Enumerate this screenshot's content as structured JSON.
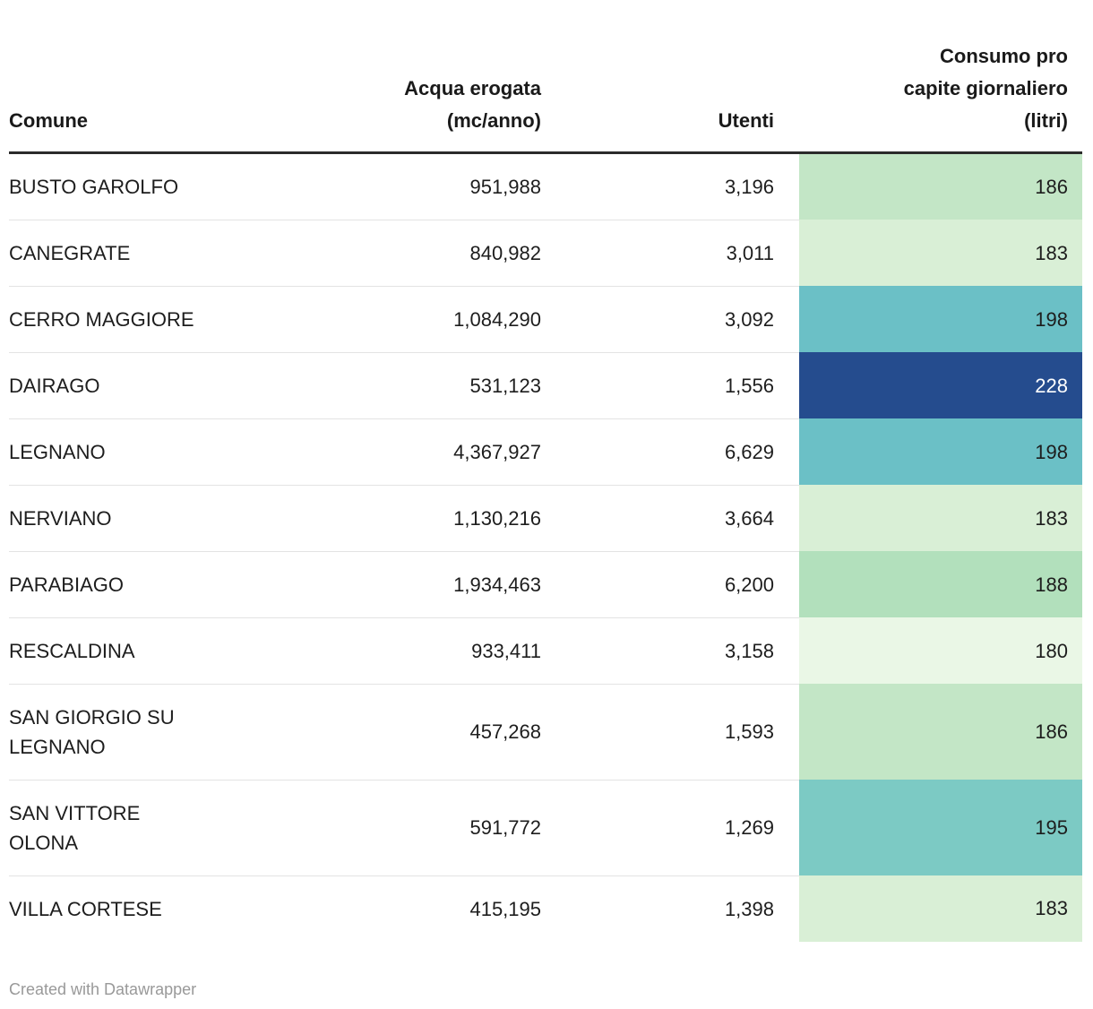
{
  "header": {
    "col_comune": "Comune",
    "col_acqua": "Acqua erogata\n(mc/anno)",
    "col_utenti": "Utenti",
    "col_consumo": "Consumo pro\ncapite giornaliero\n(litri)"
  },
  "rows": [
    {
      "comune": "BUSTO GAROLFO",
      "acqua": "951,988",
      "utenti": "3,196",
      "consumo": "186",
      "consumo_style": "background-color:#c3e6c6;color:#1d1d1d"
    },
    {
      "comune": "CANEGRATE",
      "acqua": "840,982",
      "utenti": "3,011",
      "consumo": "183",
      "consumo_style": "background-color:#d9efd6;color:#1d1d1d"
    },
    {
      "comune": "CERRO MAGGIORE",
      "acqua": "1,084,290",
      "utenti": "3,092",
      "consumo": "198",
      "consumo_style": "background-color:#6bc0c6;color:#1d1d1d"
    },
    {
      "comune": "DAIRAGO",
      "acqua": "531,123",
      "utenti": "1,556",
      "consumo": "228",
      "consumo_style": "background-color:#254c8e;color:#ffffff"
    },
    {
      "comune": "LEGNANO",
      "acqua": "4,367,927",
      "utenti": "6,629",
      "consumo": "198",
      "consumo_style": "background-color:#6bc0c6;color:#1d1d1d"
    },
    {
      "comune": "NERVIANO",
      "acqua": "1,130,216",
      "utenti": "3,664",
      "consumo": "183",
      "consumo_style": "background-color:#d9efd6;color:#1d1d1d"
    },
    {
      "comune": "PARABIAGO",
      "acqua": "1,934,463",
      "utenti": "6,200",
      "consumo": "188",
      "consumo_style": "background-color:#b2e0bc;color:#1d1d1d"
    },
    {
      "comune": "RESCALDINA",
      "acqua": "933,411",
      "utenti": "3,158",
      "consumo": "180",
      "consumo_style": "background-color:#eaf7e6;color:#1d1d1d"
    },
    {
      "comune": "SAN GIORGIO SU\nLEGNANO",
      "acqua": "457,268",
      "utenti": "1,593",
      "consumo": "186",
      "consumo_style": "background-color:#c3e6c6;color:#1d1d1d"
    },
    {
      "comune": "SAN VITTORE\nOLONA",
      "acqua": "591,772",
      "utenti": "1,269",
      "consumo": "195",
      "consumo_style": "background-color:#7ccac4;color:#1d1d1d"
    },
    {
      "comune": "VILLA CORTESE",
      "acqua": "415,195",
      "utenti": "1,398",
      "consumo": "183",
      "consumo_style": "background-color:#d9efd6;color:#1d1d1d"
    }
  ],
  "footer": {
    "credit": "Created with Datawrapper"
  },
  "colors": {
    "heat_180": "#eaf7e6",
    "heat_183": "#d9efd6",
    "heat_186": "#c3e6c6",
    "heat_188": "#b2e0bc",
    "heat_195": "#7ccac4",
    "heat_198": "#6bc0c6",
    "heat_228": "#254c8e",
    "heat_228_text": "#ffffff",
    "text": "#1d1d1d",
    "header_border": "#2b2b2b",
    "row_border": "#e3e3e3",
    "credit_text": "#999999"
  },
  "chart_data": {
    "type": "table",
    "columns": [
      "Comune",
      "Acqua erogata (mc/anno)",
      "Utenti",
      "Consumo pro capite giornaliero (litri)"
    ],
    "rows": [
      [
        "BUSTO GAROLFO",
        951988,
        3196,
        186
      ],
      [
        "CANEGRATE",
        840982,
        3011,
        183
      ],
      [
        "CERRO MAGGIORE",
        1084290,
        3092,
        198
      ],
      [
        "DAIRAGO",
        531123,
        1556,
        228
      ],
      [
        "LEGNANO",
        4367927,
        6629,
        198
      ],
      [
        "NERVIANO",
        1130216,
        3664,
        183
      ],
      [
        "PARABIAGO",
        1934463,
        6200,
        188
      ],
      [
        "RESCALDINA",
        933411,
        3158,
        180
      ],
      [
        "SAN GIORGIO SU LEGNANO",
        457268,
        1593,
        186
      ],
      [
        "SAN VITTORE OLONA",
        591772,
        1269,
        195
      ],
      [
        "VILLA CORTESE",
        415195,
        1398,
        183
      ]
    ],
    "heatmap_column": "Consumo pro capite giornaliero (litri)",
    "heatmap_range": [
      180,
      228
    ],
    "credit": "Created with Datawrapper"
  }
}
